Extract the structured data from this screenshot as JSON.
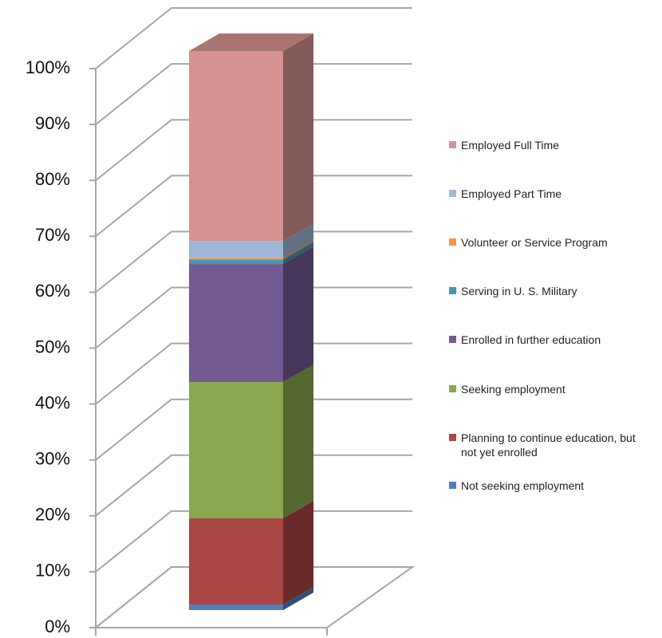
{
  "chart_data": {
    "type": "stacked_bar_3d",
    "categories": [
      null
    ],
    "series": [
      {
        "name": "Not seeking employment",
        "color": "#4f81bd",
        "values": [
          1
        ]
      },
      {
        "name": "Planning to continue education, but not yet enrolled",
        "color": "#aa4643",
        "values": [
          15.4
        ]
      },
      {
        "name": "Seeking employment",
        "color": "#8aa84f",
        "values": [
          24.4
        ]
      },
      {
        "name": "Enrolled in further education",
        "color": "#735a91",
        "values": [
          21.1
        ]
      },
      {
        "name": "Serving in U. S. Military",
        "color": "#4198af",
        "values": [
          0.8
        ]
      },
      {
        "name": "Volunteer or Service Program",
        "color": "#f79646",
        "values": [
          0.3
        ]
      },
      {
        "name": "Employed Part Time",
        "color": "#9fb6d8",
        "values": [
          3
        ]
      },
      {
        "name": "Employed Full Time",
        "color": "#d49390",
        "values": [
          34
        ]
      }
    ],
    "ylim": [
      0,
      100
    ],
    "yticks": [
      {
        "value": 0,
        "label": "0%"
      },
      {
        "value": 10,
        "label": "10%"
      },
      {
        "value": 20,
        "label": "20%"
      },
      {
        "value": 30,
        "label": "30%"
      },
      {
        "value": 40,
        "label": "40%"
      },
      {
        "value": 50,
        "label": "50%"
      },
      {
        "value": 60,
        "label": "60%"
      },
      {
        "value": 70,
        "label": "70%"
      },
      {
        "value": 80,
        "label": "80%"
      },
      {
        "value": 90,
        "label": "90%"
      },
      {
        "value": 100,
        "label": "100%"
      }
    ],
    "grid": true,
    "legend": "right"
  }
}
